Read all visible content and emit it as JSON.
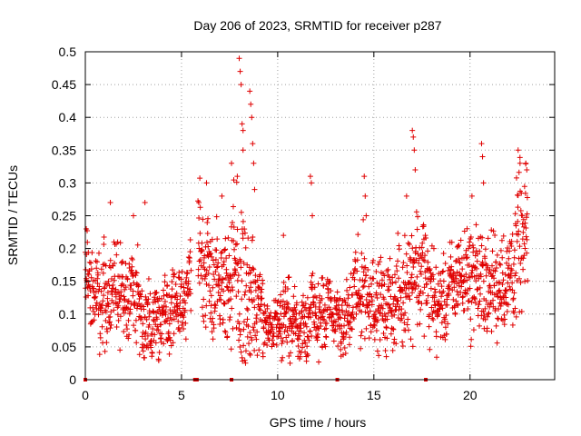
{
  "chart_data": {
    "type": "scatter",
    "title": "Day 206 of 2023, SRMTID for receiver p287",
    "xlabel": "GPS time / hours",
    "ylabel": "SRMTID / TECUs",
    "xlim": [
      0,
      24.4
    ],
    "ylim": [
      0,
      0.5
    ],
    "xticks": [
      0,
      5,
      10,
      15,
      20
    ],
    "xtick_labels": [
      "0",
      "5",
      "10",
      "15",
      "20"
    ],
    "yticks": [
      0,
      0.05,
      0.1,
      0.15,
      0.2,
      0.25,
      0.3,
      0.35,
      0.4,
      0.45,
      0.5
    ],
    "ytick_labels": [
      "0",
      "0.05",
      "0.1",
      "0.15",
      "0.2",
      "0.25",
      "0.3",
      "0.35",
      "0.4",
      "0.45",
      "0.5"
    ],
    "grid": true,
    "marker": "+",
    "color": "#e00000",
    "series_profile": {
      "name": "SRMTID",
      "description_anchor_hours": [
        0,
        0.5,
        1,
        1.5,
        2,
        2.5,
        3,
        3.5,
        4,
        4.5,
        5,
        5.5,
        6,
        6.5,
        7,
        7.5,
        8,
        8.5,
        9,
        9.5,
        10,
        10.5,
        11,
        11.5,
        12,
        12.5,
        13,
        13.5,
        14,
        14.5,
        15,
        15.5,
        16,
        16.5,
        17,
        17.5,
        18,
        18.5,
        19,
        19.5,
        20,
        20.5,
        21,
        21.5,
        22,
        22.5,
        23
      ],
      "typical_values": [
        0.17,
        0.13,
        0.12,
        0.15,
        0.12,
        0.14,
        0.09,
        0.08,
        0.1,
        0.1,
        0.11,
        0.17,
        0.19,
        0.16,
        0.15,
        0.15,
        0.14,
        0.11,
        0.1,
        0.08,
        0.09,
        0.1,
        0.08,
        0.09,
        0.1,
        0.1,
        0.1,
        0.08,
        0.13,
        0.14,
        0.12,
        0.11,
        0.12,
        0.13,
        0.17,
        0.17,
        0.13,
        0.11,
        0.14,
        0.16,
        0.16,
        0.15,
        0.14,
        0.15,
        0.15,
        0.2,
        0.22
      ],
      "spread": [
        0.04,
        0.04,
        0.05,
        0.05,
        0.05,
        0.05,
        0.04,
        0.04,
        0.04,
        0.04,
        0.04,
        0.05,
        0.06,
        0.05,
        0.05,
        0.07,
        0.1,
        0.1,
        0.05,
        0.03,
        0.03,
        0.04,
        0.03,
        0.04,
        0.04,
        0.04,
        0.03,
        0.03,
        0.05,
        0.05,
        0.04,
        0.04,
        0.04,
        0.05,
        0.06,
        0.06,
        0.05,
        0.04,
        0.04,
        0.04,
        0.05,
        0.06,
        0.05,
        0.05,
        0.05,
        0.07,
        0.06
      ]
    },
    "peaks": [
      {
        "x": 0.05,
        "y": 0.23
      },
      {
        "x": 1.3,
        "y": 0.27
      },
      {
        "x": 2.5,
        "y": 0.25
      },
      {
        "x": 3.1,
        "y": 0.27
      },
      {
        "x": 5.9,
        "y": 0.27
      },
      {
        "x": 6.3,
        "y": 0.3
      },
      {
        "x": 7.1,
        "y": 0.28
      },
      {
        "x": 7.6,
        "y": 0.33
      },
      {
        "x": 7.9,
        "y": 0.31
      },
      {
        "x": 8.0,
        "y": 0.49
      },
      {
        "x": 8.05,
        "y": 0.47
      },
      {
        "x": 8.1,
        "y": 0.45
      },
      {
        "x": 8.15,
        "y": 0.39
      },
      {
        "x": 8.2,
        "y": 0.38
      },
      {
        "x": 8.2,
        "y": 0.35
      },
      {
        "x": 8.55,
        "y": 0.44
      },
      {
        "x": 8.6,
        "y": 0.42
      },
      {
        "x": 8.65,
        "y": 0.4
      },
      {
        "x": 8.7,
        "y": 0.36
      },
      {
        "x": 8.75,
        "y": 0.33
      },
      {
        "x": 8.8,
        "y": 0.29
      },
      {
        "x": 10.3,
        "y": 0.22
      },
      {
        "x": 11.7,
        "y": 0.31
      },
      {
        "x": 11.75,
        "y": 0.3
      },
      {
        "x": 11.8,
        "y": 0.25
      },
      {
        "x": 14.5,
        "y": 0.31
      },
      {
        "x": 14.55,
        "y": 0.28
      },
      {
        "x": 14.6,
        "y": 0.25
      },
      {
        "x": 16.7,
        "y": 0.28
      },
      {
        "x": 17.0,
        "y": 0.38
      },
      {
        "x": 17.05,
        "y": 0.37
      },
      {
        "x": 17.1,
        "y": 0.35
      },
      {
        "x": 17.15,
        "y": 0.32
      },
      {
        "x": 20.1,
        "y": 0.28
      },
      {
        "x": 20.6,
        "y": 0.36
      },
      {
        "x": 20.65,
        "y": 0.34
      },
      {
        "x": 20.7,
        "y": 0.3
      },
      {
        "x": 22.5,
        "y": 0.35
      },
      {
        "x": 22.6,
        "y": 0.33
      },
      {
        "x": 22.9,
        "y": 0.33
      },
      {
        "x": 22.95,
        "y": 0.32
      }
    ],
    "zero_value_markers": {
      "points": [
        0,
        5.7,
        5.75,
        5.8,
        7.6,
        13.1,
        17.7
      ],
      "value": 0
    }
  }
}
